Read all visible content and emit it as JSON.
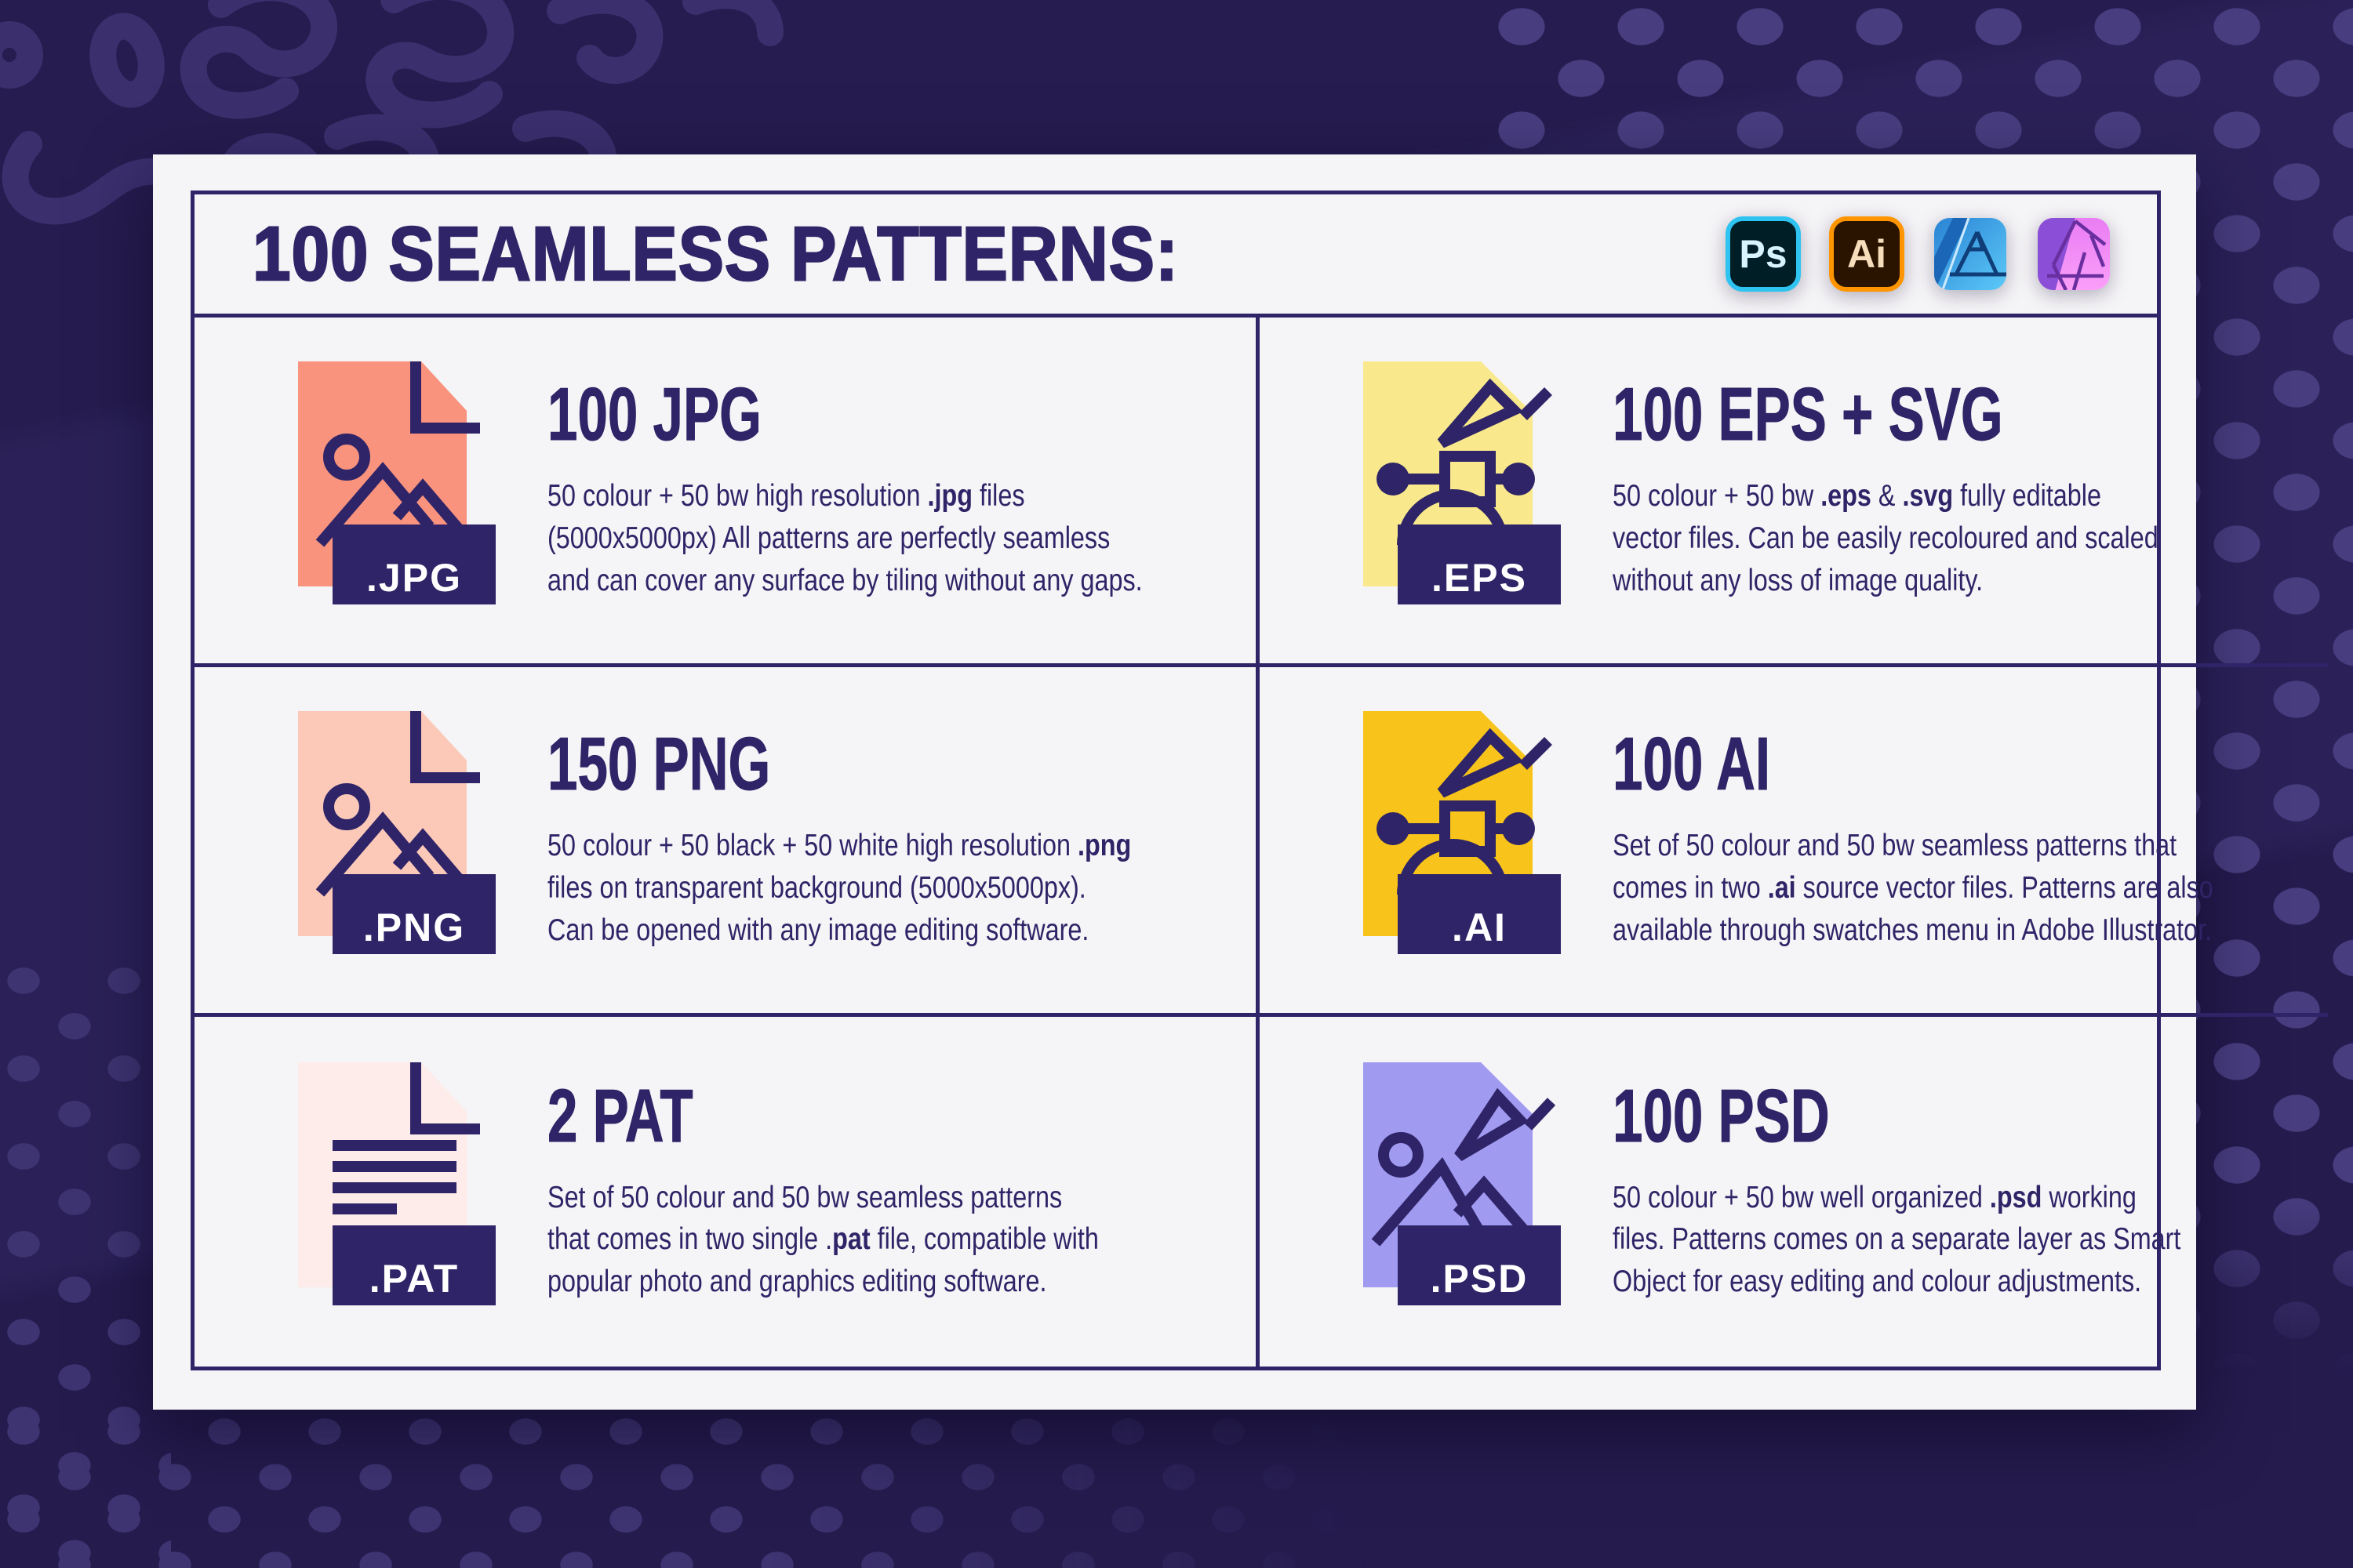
{
  "theme": {
    "page_bg": "#2b2158",
    "dot_color": "#483d7f",
    "squiggle_color": "#3b2f6e",
    "card_bg": "#f5f4f6",
    "navy": "#2e2467",
    "label_text": "#ffffff"
  },
  "header": {
    "title": "100 SEAMLESS PATTERNS:",
    "apps": [
      {
        "name": "Adobe Photoshop",
        "label": "Ps",
        "bg": "#001e26",
        "border": "#2ec3f0",
        "text_color": "#d8f3fe"
      },
      {
        "name": "Adobe Illustrator",
        "label": "Ai",
        "bg": "#2a1400",
        "border": "#ff9500",
        "text_color": "#f6ddbb"
      },
      {
        "name": "Affinity Designer"
      },
      {
        "name": "Affinity Photo"
      }
    ]
  },
  "cells": [
    {
      "id": "jpg",
      "ext": ".JPG",
      "heading": "100 JPG",
      "doc_color": "#f9937e",
      "body": [
        {
          "t": "50 colour + 50 bw high resolution "
        },
        {
          "t": ".jpg",
          "b": true
        },
        {
          "t": " files"
        },
        {
          "br": true
        },
        {
          "t": "(5000x5000px) All patterns are perfectly seamless"
        },
        {
          "br": true
        },
        {
          "t": "and can cover any surface by tiling without any gaps."
        }
      ]
    },
    {
      "id": "eps",
      "ext": ".EPS",
      "heading": "100 EPS + SVG",
      "doc_color": "#f9e98c",
      "body": [
        {
          "t": "50 colour + 50 bw "
        },
        {
          "t": ".eps",
          "b": true
        },
        {
          "t": " & "
        },
        {
          "t": ".svg",
          "b": true
        },
        {
          "t": " fully editable"
        },
        {
          "br": true
        },
        {
          "t": "vector files. Can be easily recoloured and scaled"
        },
        {
          "br": true
        },
        {
          "t": "without any loss of image quality."
        }
      ]
    },
    {
      "id": "png",
      "ext": ".PNG",
      "heading": "150 PNG",
      "doc_color": "#fcc9b9",
      "body": [
        {
          "t": "50 colour + 50 black + 50 white high resolution "
        },
        {
          "t": ".png",
          "b": true
        },
        {
          "br": true
        },
        {
          "t": "files on transparent background (5000x5000px)."
        },
        {
          "br": true
        },
        {
          "t": "Can be opened with any image editing software."
        }
      ]
    },
    {
      "id": "ai",
      "ext": ".AI",
      "heading": "100 AI",
      "doc_color": "#f8c31a",
      "body": [
        {
          "t": "Set of 50 colour and 50 bw seamless patterns that"
        },
        {
          "br": true
        },
        {
          "t": "comes in two "
        },
        {
          "t": ".ai",
          "b": true
        },
        {
          "t": " source vector files. Patterns are also"
        },
        {
          "br": true
        },
        {
          "t": "available through swatches menu in Adobe Illustrator."
        }
      ]
    },
    {
      "id": "pat",
      "ext": ".PAT",
      "heading": "2 PAT",
      "doc_color": "#fdece9",
      "body": [
        {
          "t": "Set of 50 colour and 50 bw seamless patterns"
        },
        {
          "br": true
        },
        {
          "t": "that comes in two single ."
        },
        {
          "t": "pat",
          "b": true
        },
        {
          "t": " file, compatible with"
        },
        {
          "br": true
        },
        {
          "t": "popular photo and graphics editing software."
        }
      ]
    },
    {
      "id": "psd",
      "ext": ".PSD",
      "heading": "100 PSD",
      "doc_color": "#a09af1",
      "body": [
        {
          "t": "50 colour + 50 bw well organized "
        },
        {
          "t": ".psd",
          "b": true
        },
        {
          "t": " working"
        },
        {
          "br": true
        },
        {
          "t": "files. Patterns comes on a separate layer as Smart"
        },
        {
          "br": true
        },
        {
          "t": "Object for easy editing and colour adjustments."
        }
      ]
    }
  ]
}
